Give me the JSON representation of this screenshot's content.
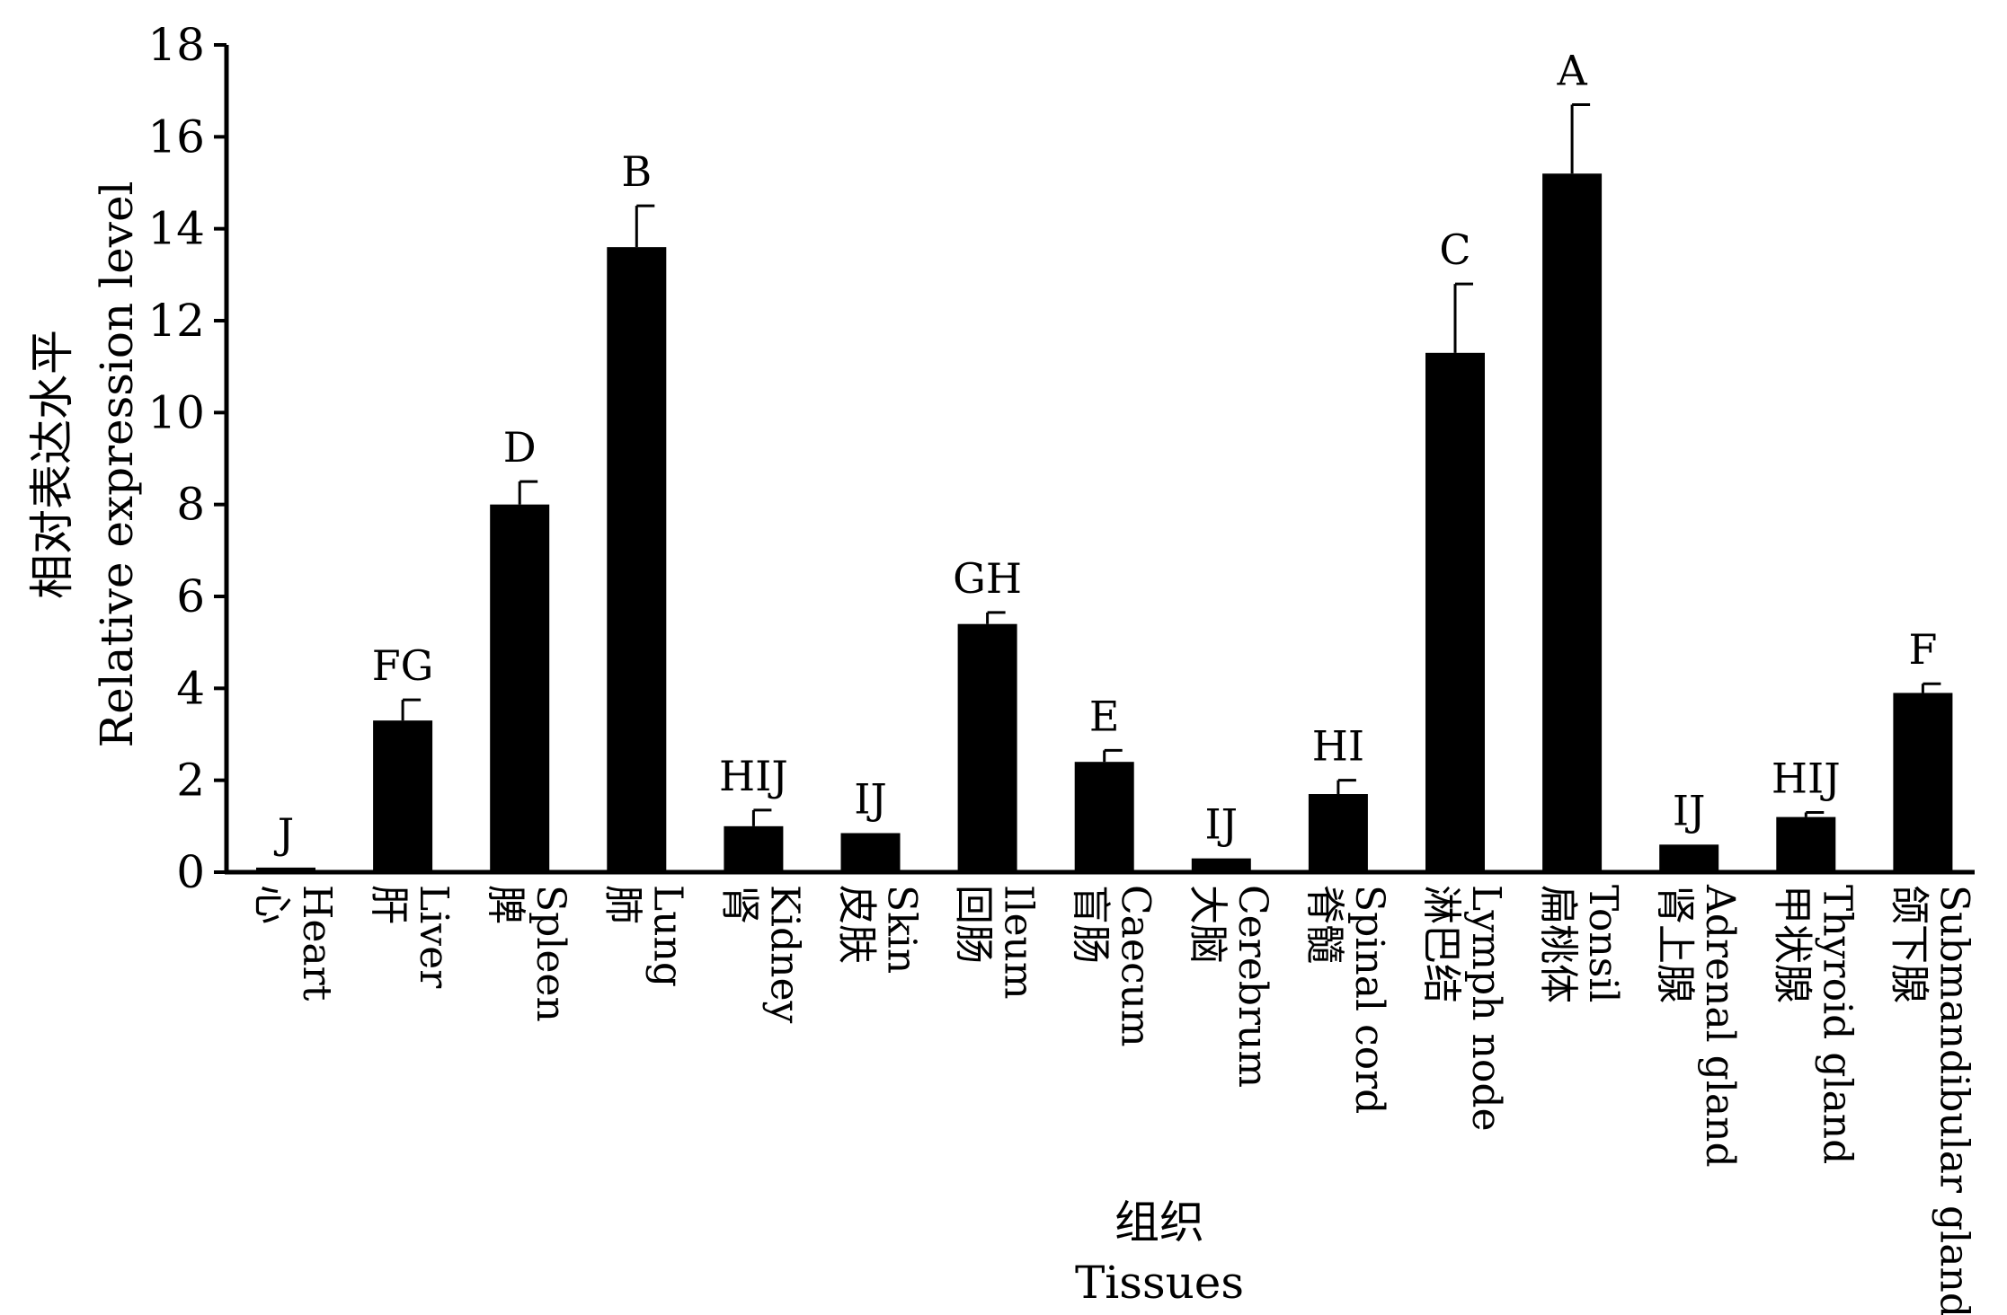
{
  "chart_data": {
    "type": "bar",
    "ylabel_zh": "相对表达水平",
    "ylabel_en": "Relative expression level",
    "xlabel_zh": "组织",
    "xlabel_en": "Tissues",
    "ylim": [
      0,
      18
    ],
    "yticks": [
      "0",
      "2",
      "4",
      "6",
      "8",
      "10",
      "12",
      "14",
      "16",
      "18"
    ],
    "bar_color": "#000000",
    "categories": [
      {
        "zh": "心",
        "en": "Heart",
        "value": 0.1,
        "error": 0.0,
        "sig": "J"
      },
      {
        "zh": "肝",
        "en": "Liver",
        "value": 3.3,
        "error": 0.45,
        "sig": "FG"
      },
      {
        "zh": "脾",
        "en": "Spleen",
        "value": 8.0,
        "error": 0.5,
        "sig": "D"
      },
      {
        "zh": "肺",
        "en": "Lung",
        "value": 13.6,
        "error": 0.9,
        "sig": "B"
      },
      {
        "zh": "肾",
        "en": "Kidney",
        "value": 1.0,
        "error": 0.35,
        "sig": "HIJ"
      },
      {
        "zh": "皮肤",
        "en": "Skin",
        "value": 0.85,
        "error": 0.0,
        "sig": "IJ"
      },
      {
        "zh": "回肠",
        "en": "Ileum",
        "value": 5.4,
        "error": 0.25,
        "sig": "GH"
      },
      {
        "zh": "盲肠",
        "en": "Caecum",
        "value": 2.4,
        "error": 0.25,
        "sig": "E"
      },
      {
        "zh": "大脑",
        "en": "Cerebrum",
        "value": 0.3,
        "error": 0.0,
        "sig": "IJ"
      },
      {
        "zh": "脊髓",
        "en": "Spinal cord",
        "value": 1.7,
        "error": 0.3,
        "sig": "HI"
      },
      {
        "zh": "淋巴结",
        "en": "Lymph node",
        "value": 11.3,
        "error": 1.5,
        "sig": "C"
      },
      {
        "zh": "扁桃体",
        "en": "Tonsil",
        "value": 15.2,
        "error": 1.5,
        "sig": "A"
      },
      {
        "zh": "肾上腺",
        "en": "Adrenal gland",
        "value": 0.6,
        "error": 0.0,
        "sig": "IJ"
      },
      {
        "zh": "甲状腺",
        "en": "Thyroid gland",
        "value": 1.2,
        "error": 0.1,
        "sig": "HIJ"
      },
      {
        "zh": "颌下腺",
        "en": "Submandibular gland",
        "value": 3.9,
        "error": 0.2,
        "sig": "F"
      }
    ]
  }
}
